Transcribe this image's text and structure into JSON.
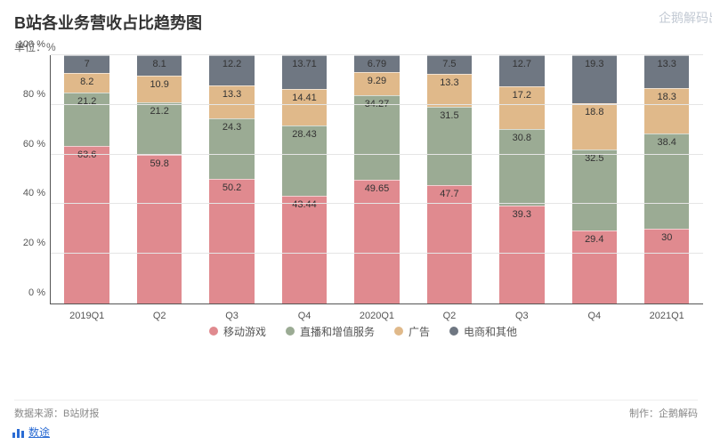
{
  "title": "B站各业务营收占比趋势图",
  "unit_label": "单位：%",
  "watermark": "企鹅解码出品",
  "source_label": "数据来源：B站财报",
  "producer_label": "制作：企鹅解码",
  "data_link": {
    "label": "数途",
    "icon": "bar-chart-icon"
  },
  "chart": {
    "type": "stacked-bar-100",
    "background_color": "#ffffff",
    "grid_color": "#e5e5e5",
    "axis_color": "#555555",
    "label_fontsize": 11,
    "y": {
      "min": 0,
      "max": 100,
      "ticks": [
        0,
        20,
        40,
        60,
        80,
        100
      ],
      "suffix": " %"
    },
    "categories": [
      "2019Q1",
      "Q2",
      "Q3",
      "Q4",
      "2020Q1",
      "Q2",
      "Q3",
      "Q4",
      "2021Q1"
    ],
    "series": [
      {
        "key": "mobile_games",
        "name": "移动游戏",
        "color": "#e08a8f"
      },
      {
        "key": "live_vas",
        "name": "直播和增值服务",
        "color": "#9bab94"
      },
      {
        "key": "ads",
        "name": "广告",
        "color": "#e0b98a"
      },
      {
        "key": "ecom_other",
        "name": "电商和其他",
        "color": "#6f7782"
      }
    ],
    "values": {
      "mobile_games": [
        63.6,
        59.8,
        50.2,
        43.44,
        49.65,
        47.7,
        39.3,
        29.4,
        30
      ],
      "live_vas": [
        21.2,
        21.2,
        24.3,
        28.43,
        34.27,
        31.5,
        30.8,
        32.5,
        38.4
      ],
      "ads": [
        8.2,
        10.9,
        13.3,
        14.41,
        9.29,
        13.3,
        17.2,
        18.8,
        18.3
      ],
      "ecom_other": [
        7,
        8.1,
        12.2,
        13.71,
        6.79,
        7.5,
        12.7,
        19.3,
        13.3
      ]
    },
    "bar_width_pct": 62
  }
}
